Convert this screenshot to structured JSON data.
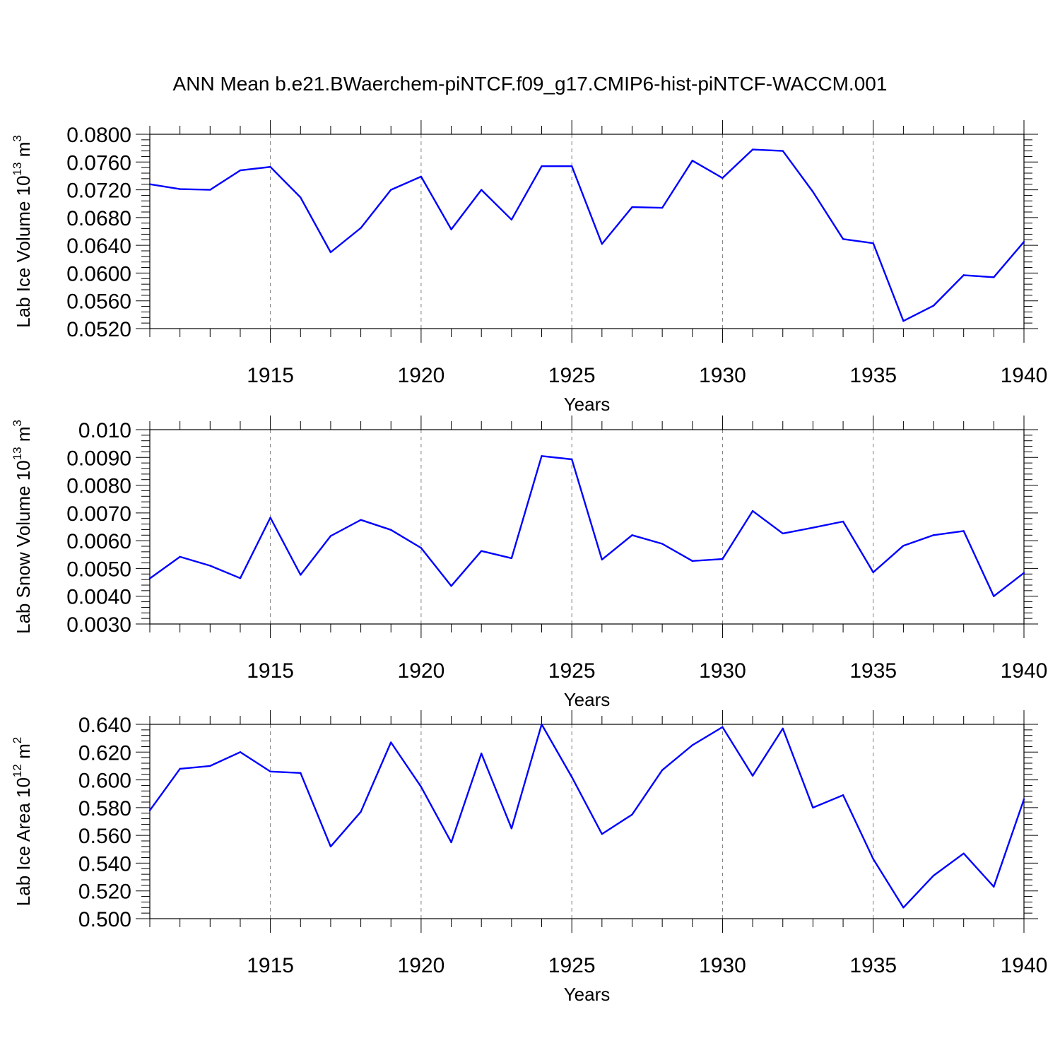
{
  "title": "ANN Mean b.e21.BWaerchem-piNTCF.f09_g17.CMIP6-hist-piNTCF-WACCM.001",
  "colors": {
    "series": "#0000ff",
    "grid": "#7f7f7f",
    "axis": "#000000"
  },
  "chart_data": [
    {
      "type": "line",
      "ylabel_main": "Lab Ice Volume 10",
      "ylabel_exp": "13",
      "ylabel_unit": "m",
      "ylabel_unit_exp": "3",
      "xlabel": "Years",
      "xlim": [
        1911,
        1940
      ],
      "ylim": [
        0.052,
        0.08
      ],
      "x_ticks": [
        1915,
        1920,
        1925,
        1930,
        1935,
        1940
      ],
      "x_tick_labels": [
        "1915",
        "1920",
        "1925",
        "1930",
        "1935",
        "1940"
      ],
      "y_ticks": [
        0.052,
        0.056,
        0.06,
        0.064,
        0.068,
        0.072,
        0.076,
        0.08
      ],
      "y_tick_labels": [
        "0.0520",
        "0.0560",
        "0.0600",
        "0.0640",
        "0.0680",
        "0.0720",
        "0.0760",
        "0.0800"
      ],
      "y_minor_step": 0.0008,
      "grid": "vertical dashed at major x ticks",
      "x": [
        1911,
        1912,
        1913,
        1914,
        1915,
        1916,
        1917,
        1918,
        1919,
        1920,
        1921,
        1922,
        1923,
        1924,
        1925,
        1926,
        1927,
        1928,
        1929,
        1930,
        1931,
        1932,
        1933,
        1934,
        1935,
        1936,
        1937,
        1938,
        1939,
        1940
      ],
      "values": [
        0.0728,
        0.0721,
        0.072,
        0.0748,
        0.0753,
        0.0709,
        0.063,
        0.0665,
        0.072,
        0.0739,
        0.0663,
        0.072,
        0.0677,
        0.0754,
        0.0754,
        0.0642,
        0.0695,
        0.0694,
        0.0762,
        0.0737,
        0.0778,
        0.0776,
        0.0717,
        0.0649,
        0.0643,
        0.0531,
        0.0553,
        0.0597,
        0.0594,
        0.0645
      ]
    },
    {
      "type": "line",
      "ylabel_main": "Lab Snow Volume 10",
      "ylabel_exp": "13",
      "ylabel_unit": "m",
      "ylabel_unit_exp": "3",
      "xlabel": "Years",
      "xlim": [
        1911,
        1940
      ],
      "ylim": [
        0.003,
        0.01
      ],
      "x_ticks": [
        1915,
        1920,
        1925,
        1930,
        1935,
        1940
      ],
      "x_tick_labels": [
        "1915",
        "1920",
        "1925",
        "1930",
        "1935",
        "1940"
      ],
      "y_ticks": [
        0.003,
        0.004,
        0.005,
        0.006,
        0.007,
        0.008,
        0.009,
        0.01
      ],
      "y_tick_labels": [
        "0.0030",
        "0.0040",
        "0.0050",
        "0.0060",
        "0.0070",
        "0.0080",
        "0.0090",
        "0.010"
      ],
      "y_minor_step": 0.0002,
      "grid": "vertical dashed at major x ticks",
      "x": [
        1911,
        1912,
        1913,
        1914,
        1915,
        1916,
        1917,
        1918,
        1919,
        1920,
        1921,
        1922,
        1923,
        1924,
        1925,
        1926,
        1927,
        1928,
        1929,
        1930,
        1931,
        1932,
        1933,
        1934,
        1935,
        1936,
        1937,
        1938,
        1939,
        1940
      ],
      "values": [
        0.00464,
        0.00542,
        0.0051,
        0.00465,
        0.00683,
        0.00477,
        0.00617,
        0.00675,
        0.00639,
        0.00574,
        0.00437,
        0.00563,
        0.00537,
        0.00905,
        0.00893,
        0.00532,
        0.0062,
        0.00589,
        0.00527,
        0.00534,
        0.00707,
        0.00626,
        0.00647,
        0.00669,
        0.00486,
        0.00582,
        0.0062,
        0.00635,
        0.004,
        0.00484
      ]
    },
    {
      "type": "line",
      "ylabel_main": "Lab Ice Area 10",
      "ylabel_exp": "12",
      "ylabel_unit": "m",
      "ylabel_unit_exp": "2",
      "xlabel": "Years",
      "xlim": [
        1911,
        1940
      ],
      "ylim": [
        0.5,
        0.64
      ],
      "x_ticks": [
        1915,
        1920,
        1925,
        1930,
        1935,
        1940
      ],
      "x_tick_labels": [
        "1915",
        "1920",
        "1925",
        "1930",
        "1935",
        "1940"
      ],
      "y_ticks": [
        0.5,
        0.52,
        0.54,
        0.56,
        0.58,
        0.6,
        0.62,
        0.64
      ],
      "y_tick_labels": [
        "0.500",
        "0.520",
        "0.540",
        "0.560",
        "0.580",
        "0.600",
        "0.620",
        "0.640"
      ],
      "y_minor_step": 0.004,
      "grid": "vertical dashed at major x ticks",
      "x": [
        1911,
        1912,
        1913,
        1914,
        1915,
        1916,
        1917,
        1918,
        1919,
        1920,
        1921,
        1922,
        1923,
        1924,
        1925,
        1926,
        1927,
        1928,
        1929,
        1930,
        1931,
        1932,
        1933,
        1934,
        1935,
        1936,
        1937,
        1938,
        1939,
        1940
      ],
      "values": [
        0.578,
        0.608,
        0.61,
        0.62,
        0.606,
        0.605,
        0.552,
        0.577,
        0.627,
        0.595,
        0.555,
        0.619,
        0.565,
        0.64,
        0.602,
        0.561,
        0.575,
        0.607,
        0.625,
        0.638,
        0.603,
        0.637,
        0.58,
        0.589,
        0.543,
        0.508,
        0.531,
        0.547,
        0.523,
        0.586
      ]
    }
  ]
}
